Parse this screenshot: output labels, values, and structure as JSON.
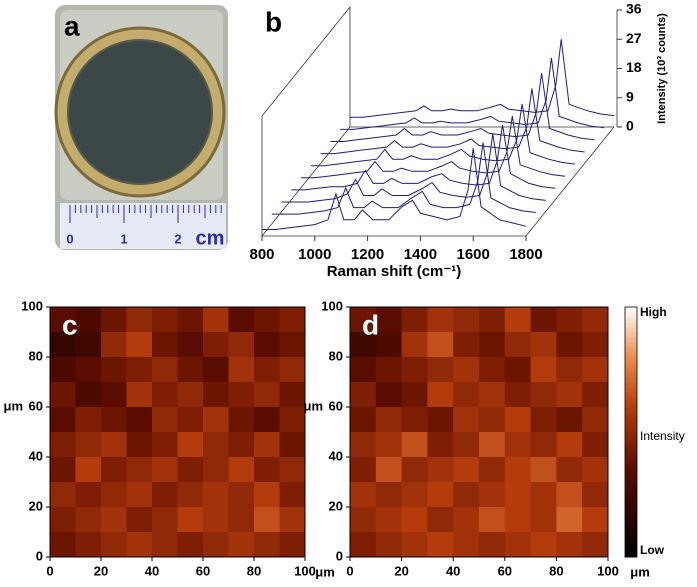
{
  "photo": {
    "label": "a",
    "ruler_labels": [
      "0",
      "1",
      "2"
    ],
    "ruler_unit": "cm"
  },
  "chart_data": [
    {
      "type": "waterfall",
      "label": "b",
      "color": "#1c1c84",
      "xlabel": "Raman shift (cm⁻¹)",
      "ylabel": "Intensity (10³ counts)",
      "xlim": [
        800,
        1800
      ],
      "xticks": [
        800,
        1000,
        1200,
        1400,
        1600,
        1800
      ],
      "ylim": [
        0,
        36
      ],
      "yticks": [
        0,
        9,
        18,
        27,
        36
      ],
      "x": [
        800,
        850,
        900,
        950,
        1000,
        1050,
        1080,
        1110,
        1150,
        1180,
        1220,
        1280,
        1330,
        1370,
        1400,
        1450,
        1500,
        1550,
        1580,
        1600,
        1630,
        1700,
        1750,
        1800
      ],
      "series": [
        {
          "values": [
            2,
            2,
            2.5,
            3,
            3.5,
            5,
            13,
            5,
            5,
            8,
            5,
            5,
            9,
            11,
            7,
            6,
            5,
            6,
            14,
            27,
            9,
            5,
            4,
            3
          ]
        },
        {
          "values": [
            3,
            3,
            3,
            3.5,
            4,
            5,
            11,
            5,
            5,
            7,
            5,
            5,
            8,
            10,
            6,
            5,
            5,
            6,
            13,
            25,
            8,
            5,
            4,
            3.5
          ]
        },
        {
          "values": [
            3,
            3,
            3,
            3.5,
            4,
            5.5,
            10,
            5,
            5,
            7,
            5,
            5,
            7,
            9,
            6,
            5,
            4.5,
            5,
            12,
            24,
            8,
            5,
            4,
            3.5
          ]
        },
        {
          "values": [
            3,
            3,
            3.5,
            4,
            4,
            5,
            9,
            5,
            5,
            6.5,
            5,
            5,
            7,
            8,
            6,
            5,
            4.5,
            5,
            12,
            23,
            8,
            5,
            4,
            3.5
          ]
        },
        {
          "values": [
            3,
            3,
            3.5,
            4,
            4.5,
            5,
            8,
            5,
            5,
            6,
            5,
            5,
            6.5,
            8,
            6,
            5,
            4.5,
            5,
            11,
            22,
            7,
            5,
            4,
            3.5
          ]
        },
        {
          "values": [
            3,
            3,
            3.5,
            4,
            4.5,
            5,
            8,
            5,
            5,
            6,
            5,
            5,
            6.5,
            8,
            6,
            5,
            4.5,
            5,
            11,
            22,
            7,
            5,
            4,
            3.5
          ]
        },
        {
          "values": [
            3,
            3,
            3.5,
            4,
            4.5,
            5,
            7,
            5,
            5,
            6,
            5,
            5,
            6,
            7.5,
            5.5,
            5,
            4.5,
            5,
            11,
            23,
            7,
            5,
            4,
            3.5
          ]
        },
        {
          "values": [
            3,
            3,
            3.5,
            4,
            4.5,
            5,
            7,
            5,
            5,
            6,
            5,
            5,
            6,
            7,
            5.5,
            5,
            4.5,
            5,
            12,
            24,
            7,
            5,
            4,
            3.5
          ]
        },
        {
          "values": [
            3,
            3,
            3.5,
            4,
            4.5,
            5,
            6.5,
            5,
            5,
            5.5,
            5,
            5,
            6,
            7,
            5.5,
            5,
            4.5,
            5,
            12,
            25,
            7,
            5,
            4,
            3.5
          ]
        },
        {
          "values": [
            3,
            3,
            3.5,
            4,
            4.5,
            5,
            6.5,
            5,
            5,
            5.5,
            5,
            5,
            6,
            7,
            5.5,
            5,
            4.5,
            5,
            13,
            27,
            7,
            5,
            4,
            3.5
          ]
        }
      ]
    },
    {
      "type": "heatmap",
      "label": "c",
      "xlabel": "μm",
      "ylabel": "μm",
      "xlim": [
        0,
        100
      ],
      "xticks": [
        0,
        20,
        40,
        60,
        80,
        100
      ],
      "ylim": [
        0,
        100
      ],
      "yticks": [
        0,
        20,
        40,
        60,
        80,
        100
      ],
      "clim": [
        0,
        1
      ],
      "z": [
        [
          0.35,
          0.3,
          0.4,
          0.5,
          0.45,
          0.4,
          0.55,
          0.35,
          0.4,
          0.45
        ],
        [
          0.2,
          0.25,
          0.5,
          0.6,
          0.4,
          0.35,
          0.45,
          0.5,
          0.35,
          0.4
        ],
        [
          0.3,
          0.35,
          0.4,
          0.45,
          0.5,
          0.4,
          0.35,
          0.55,
          0.45,
          0.5
        ],
        [
          0.4,
          0.3,
          0.35,
          0.55,
          0.45,
          0.5,
          0.4,
          0.45,
          0.5,
          0.4
        ],
        [
          0.35,
          0.45,
          0.4,
          0.35,
          0.5,
          0.45,
          0.55,
          0.4,
          0.35,
          0.45
        ],
        [
          0.45,
          0.5,
          0.55,
          0.4,
          0.45,
          0.6,
          0.5,
          0.45,
          0.55,
          0.4
        ],
        [
          0.4,
          0.6,
          0.45,
          0.5,
          0.55,
          0.45,
          0.5,
          0.6,
          0.45,
          0.5
        ],
        [
          0.5,
          0.45,
          0.5,
          0.55,
          0.45,
          0.5,
          0.55,
          0.5,
          0.6,
          0.45
        ],
        [
          0.45,
          0.5,
          0.55,
          0.45,
          0.5,
          0.6,
          0.55,
          0.5,
          0.65,
          0.55
        ],
        [
          0.4,
          0.45,
          0.5,
          0.55,
          0.5,
          0.45,
          0.5,
          0.55,
          0.5,
          0.45
        ]
      ]
    },
    {
      "type": "heatmap",
      "label": "d",
      "xlabel": "μm",
      "xlim": [
        0,
        100
      ],
      "xticks": [
        0,
        20,
        40,
        60,
        80,
        100
      ],
      "ylim": [
        0,
        100
      ],
      "yticks": [
        0,
        20,
        40,
        60,
        80,
        100
      ],
      "clim": [
        0,
        1
      ],
      "colorbar": {
        "label": "Intensity",
        "ticks": [
          {
            "value": 0,
            "label": "Low"
          },
          {
            "value": 1,
            "label": "High"
          }
        ]
      },
      "z": [
        [
          0.4,
          0.35,
          0.45,
          0.55,
          0.5,
          0.45,
          0.6,
          0.4,
          0.45,
          0.5
        ],
        [
          0.25,
          0.3,
          0.55,
          0.65,
          0.45,
          0.4,
          0.5,
          0.55,
          0.4,
          0.45
        ],
        [
          0.35,
          0.4,
          0.45,
          0.5,
          0.55,
          0.45,
          0.4,
          0.6,
          0.5,
          0.55
        ],
        [
          0.45,
          0.35,
          0.4,
          0.6,
          0.5,
          0.55,
          0.45,
          0.5,
          0.55,
          0.45
        ],
        [
          0.4,
          0.5,
          0.45,
          0.4,
          0.55,
          0.5,
          0.6,
          0.45,
          0.4,
          0.5
        ],
        [
          0.5,
          0.55,
          0.65,
          0.45,
          0.5,
          0.65,
          0.55,
          0.5,
          0.6,
          0.45
        ],
        [
          0.45,
          0.65,
          0.5,
          0.55,
          0.6,
          0.5,
          0.6,
          0.65,
          0.5,
          0.55
        ],
        [
          0.55,
          0.5,
          0.55,
          0.6,
          0.5,
          0.55,
          0.6,
          0.55,
          0.65,
          0.5
        ],
        [
          0.5,
          0.55,
          0.6,
          0.5,
          0.55,
          0.65,
          0.6,
          0.55,
          0.7,
          0.6
        ],
        [
          0.45,
          0.5,
          0.55,
          0.6,
          0.55,
          0.5,
          0.55,
          0.6,
          0.55,
          0.5
        ]
      ]
    }
  ]
}
